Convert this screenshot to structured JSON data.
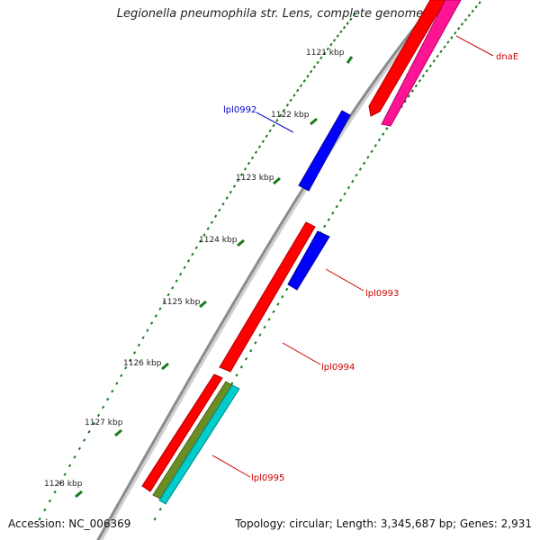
{
  "title": "Legionella pneumophila str. Lens, complete genome",
  "footer": {
    "accession": "Accession: NC_006369",
    "summary": "Topology: circular; Length: 3,345,687 bp; Genes: 2,931"
  },
  "colors": {
    "backbone": "#8c8c8c",
    "tick": "#1a7a1a",
    "gene_red": "#ff0000",
    "gene_blue": "#0000ff",
    "gene_magenta": "#ff1493",
    "gene_olive": "#6b8e23",
    "gene_cyan": "#00cccc",
    "label_red": "#cc0000",
    "label_blue": "#0000cc"
  },
  "kbp_labels": [
    "1121 kbp",
    "1122 kbp",
    "1123 kbp",
    "1124 kbp",
    "1125 kbp",
    "1126 kbp",
    "1127 kbp",
    "1128 kbp"
  ],
  "gene_labels": [
    "dnaE",
    "lpl0992",
    "lpl0993",
    "lpl0994",
    "lpl0995"
  ]
}
